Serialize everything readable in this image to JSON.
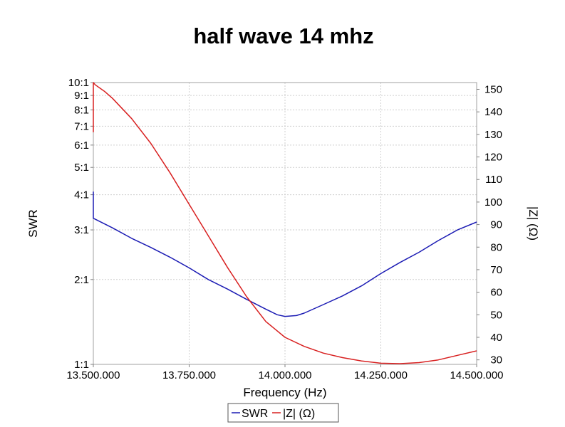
{
  "chart_data": {
    "type": "line",
    "title": "half wave 14 mhz",
    "xlabel": "Frequency (Hz)",
    "ylabel_left": "SWR",
    "ylabel_right": "|Z| (Ω)",
    "xlim": [
      13500000,
      14500000
    ],
    "x_ticks": [
      13500000,
      13750000,
      14000000,
      14250000,
      14500000
    ],
    "x_tick_labels": [
      "13.500.000",
      "13.750.000",
      "14.000.000",
      "14.250.000",
      "14.500.000"
    ],
    "y_left_scale": "log",
    "y_left_lim": [
      1,
      10
    ],
    "y_left_ticks": [
      1,
      2,
      3,
      4,
      5,
      6,
      7,
      8,
      9,
      10
    ],
    "y_left_tick_labels": [
      "1:1",
      "2:1",
      "3:1",
      "4:1",
      "5:1",
      "6:1",
      "7:1",
      "8:1",
      "9:1",
      "10:1"
    ],
    "y_right_lim": [
      28,
      153
    ],
    "y_right_ticks": [
      30,
      40,
      50,
      60,
      70,
      80,
      90,
      100,
      110,
      120,
      130,
      140,
      150
    ],
    "y_right_tick_labels": [
      "30",
      "40",
      "50",
      "60",
      "70",
      "80",
      "90",
      "100",
      "110",
      "120",
      "130",
      "140",
      "150"
    ],
    "grid": true,
    "legend_position": "bottom",
    "series": [
      {
        "name": "SWR",
        "axis": "left",
        "color": "#1c1cb4",
        "x": [
          13500000,
          13500000,
          13550000,
          13600000,
          13650000,
          13700000,
          13750000,
          13800000,
          13850000,
          13900000,
          13950000,
          13980000,
          14000000,
          14030000,
          14050000,
          14100000,
          14150000,
          14200000,
          14250000,
          14300000,
          14350000,
          14400000,
          14450000,
          14500000
        ],
        "values": [
          4.1,
          3.3,
          3.05,
          2.8,
          2.6,
          2.4,
          2.2,
          2.0,
          1.85,
          1.7,
          1.57,
          1.5,
          1.48,
          1.49,
          1.52,
          1.63,
          1.75,
          1.9,
          2.1,
          2.3,
          2.5,
          2.75,
          3.0,
          3.2
        ]
      },
      {
        "name": "|Z| (Ω)",
        "axis": "right",
        "color": "#d82020",
        "x": [
          13500000,
          13500000,
          13505000,
          13530000,
          13550000,
          13600000,
          13650000,
          13700000,
          13750000,
          13800000,
          13850000,
          13900000,
          13950000,
          14000000,
          14050000,
          14100000,
          14150000,
          14200000,
          14250000,
          14300000,
          14350000,
          14400000,
          14450000,
          14500000
        ],
        "values": [
          131,
          153,
          152,
          149,
          146,
          137,
          126,
          113,
          99,
          85,
          71,
          58,
          47,
          40,
          36,
          33,
          31,
          29.5,
          28.5,
          28.3,
          28.8,
          30,
          32,
          34
        ]
      }
    ]
  }
}
